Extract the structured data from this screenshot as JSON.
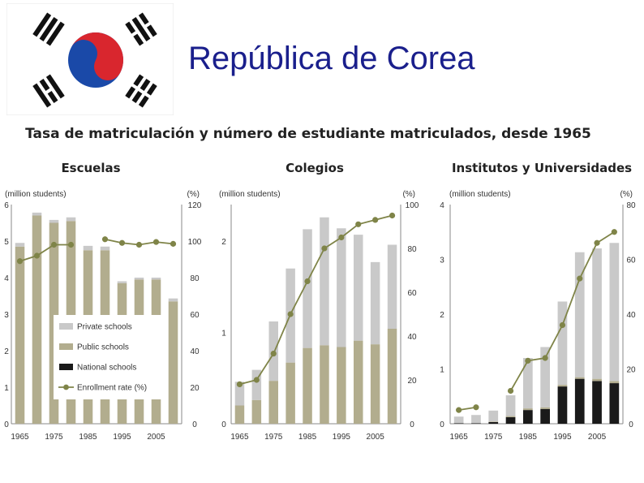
{
  "slide": {
    "title": "República de Corea"
  },
  "flag": {
    "name": "south-korea-flag",
    "colors": {
      "red": "#d9262e",
      "blue": "#1a49a8",
      "black": "#111111"
    }
  },
  "figure": {
    "title": "Tasa de matriculación y número de estudiante matriculados, desde 1965"
  },
  "legend": [
    {
      "label": "Private schools",
      "color": "#c9c9c9"
    },
    {
      "label": "Public schools",
      "color": "#b2ad8e"
    },
    {
      "label": "National schools",
      "color": "#1a1a1a"
    },
    {
      "label": "Enrollment rate (%)",
      "color": "#7f8448"
    }
  ],
  "colors": {
    "private": "#c9c9c9",
    "public": "#b2ad8e",
    "national": "#1a1a1a",
    "rate": "#7f8448"
  },
  "chart_data": [
    {
      "type": "bar",
      "title": "Escuelas",
      "left_unit": "(million students)",
      "right_unit": "(%)",
      "left_ticks": [
        "0",
        "1",
        "2",
        "3",
        "4",
        "5",
        "6"
      ],
      "right_ticks": [
        "0",
        "20",
        "40",
        "60",
        "80",
        "100",
        "120"
      ],
      "ylim": [
        0,
        6
      ],
      "y2lim": [
        0,
        120
      ],
      "x_tick_labels": [
        "1965",
        "1975",
        "1985",
        "1995",
        "2005"
      ],
      "categories": [
        "1965",
        "1970",
        "1975",
        "1980",
        "1985",
        "1990",
        "1995",
        "2000",
        "2005",
        "2010"
      ],
      "series": [
        {
          "name": "National schools",
          "values": [
            0,
            0,
            0,
            0,
            0,
            0,
            0,
            0,
            0,
            0
          ]
        },
        {
          "name": "Public schools",
          "values": [
            4.85,
            5.7,
            5.5,
            5.55,
            4.75,
            4.75,
            3.85,
            3.95,
            3.95,
            3.35
          ]
        },
        {
          "name": "Private schools",
          "values": [
            0.1,
            0.08,
            0.08,
            0.1,
            0.12,
            0.1,
            0.05,
            0.05,
            0.05,
            0.08
          ]
        },
        {
          "name": "Enrollment rate (%)",
          "axis": "right",
          "values": [
            89,
            92,
            98,
            98,
            null,
            101,
            99,
            98,
            99.5,
            98.5
          ]
        }
      ],
      "legend_position": "bottom-left"
    },
    {
      "type": "bar",
      "title": "Colegios",
      "left_unit": "(million students)",
      "right_unit": "(%)",
      "left_ticks": [
        "0",
        "1",
        "2"
      ],
      "right_ticks": [
        "0",
        "20",
        "40",
        "60",
        "80",
        "100"
      ],
      "ylim": [
        0,
        2.4
      ],
      "y2lim": [
        0,
        100
      ],
      "x_tick_labels": [
        "1965",
        "1975",
        "1985",
        "1995",
        "2005"
      ],
      "categories": [
        "1965",
        "1970",
        "1975",
        "1980",
        "1985",
        "1990",
        "1995",
        "2000",
        "2005",
        "2010"
      ],
      "series": [
        {
          "name": "National schools",
          "values": [
            0,
            0,
            0,
            0,
            0,
            0,
            0,
            0,
            0,
            0
          ]
        },
        {
          "name": "Public schools",
          "values": [
            0.2,
            0.26,
            0.47,
            0.67,
            0.83,
            0.86,
            0.84,
            0.91,
            0.87,
            1.04
          ]
        },
        {
          "name": "Private schools",
          "values": [
            0.26,
            0.33,
            0.65,
            1.03,
            1.3,
            1.4,
            1.3,
            1.16,
            0.9,
            0.92
          ]
        },
        {
          "name": "Enrollment rate (%)",
          "axis": "right",
          "values": [
            18,
            20,
            32,
            50,
            65,
            80,
            85,
            91,
            93,
            95
          ]
        }
      ]
    },
    {
      "type": "bar",
      "title": "Institutos y Universidades",
      "left_unit": "(million students)",
      "right_unit": "(%)",
      "left_ticks": [
        "0",
        "1",
        "2",
        "3",
        "4"
      ],
      "right_ticks": [
        "0",
        "20",
        "40",
        "60",
        "80"
      ],
      "ylim": [
        0,
        4
      ],
      "y2lim": [
        0,
        80
      ],
      "x_tick_labels": [
        "1965",
        "1975",
        "1985",
        "1995",
        "2005"
      ],
      "categories": [
        "1965",
        "1970",
        "1975",
        "1980",
        "1985",
        "1990",
        "1995",
        "2000",
        "2005",
        "2010"
      ],
      "series": [
        {
          "name": "National schools",
          "values": [
            0.01,
            0.01,
            0.03,
            0.12,
            0.25,
            0.27,
            0.68,
            0.82,
            0.78,
            0.74
          ]
        },
        {
          "name": "Public schools",
          "values": [
            0,
            0,
            0.01,
            0.02,
            0.03,
            0.03,
            0.03,
            0.03,
            0.04,
            0.04
          ]
        },
        {
          "name": "Private schools",
          "values": [
            0.12,
            0.15,
            0.2,
            0.38,
            0.92,
            1.1,
            1.52,
            2.28,
            2.38,
            2.52
          ]
        },
        {
          "name": "Enrollment rate (%)",
          "axis": "right",
          "values": [
            5,
            6,
            null,
            12,
            23,
            24,
            36,
            53,
            66,
            70
          ]
        }
      ]
    }
  ]
}
